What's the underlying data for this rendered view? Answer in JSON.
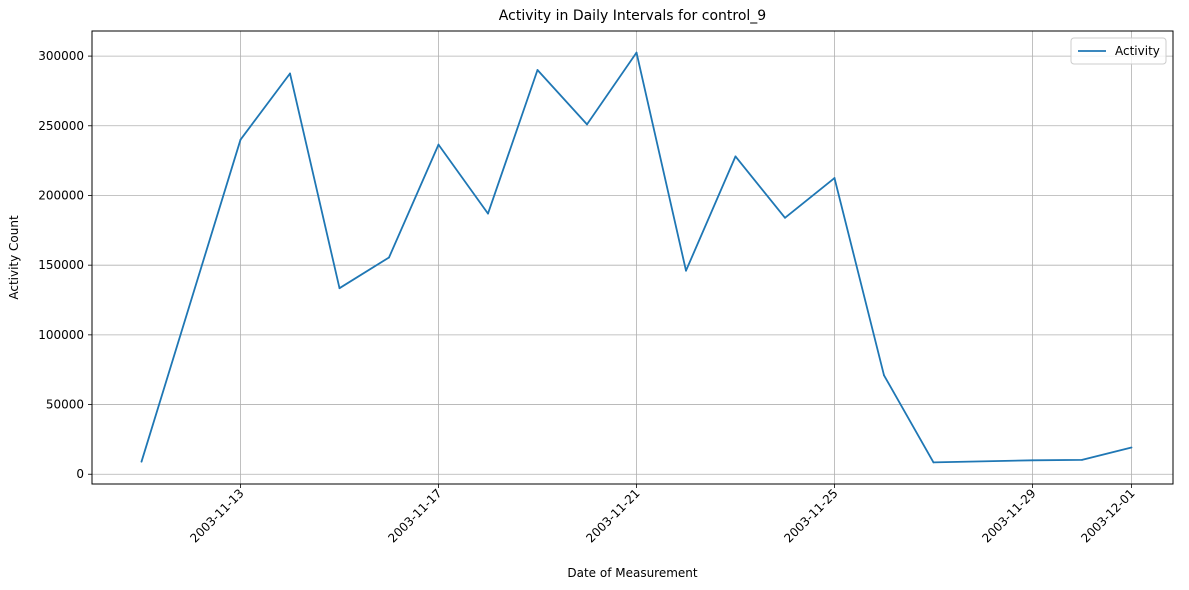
{
  "chart_data": {
    "type": "line",
    "title": "Activity in Daily Intervals for control_9",
    "xlabel": "Date of Measurement",
    "ylabel": "Activity Count",
    "x_type": "date",
    "x_tick_labels": [
      "2003-11-13",
      "2003-11-17",
      "2003-11-21",
      "2003-11-25",
      "2003-11-29",
      "2003-12-01"
    ],
    "y_tick_labels": [
      "0",
      "50000",
      "100000",
      "150000",
      "200000",
      "250000",
      "300000"
    ],
    "y_ticks": [
      0,
      50000,
      100000,
      150000,
      200000,
      250000,
      300000
    ],
    "xlim": [
      "2003-11-10",
      "2003-12-01"
    ],
    "ylim": [
      -7000,
      318000
    ],
    "grid": true,
    "legend_position": "upper right",
    "series": [
      {
        "name": "Activity",
        "color": "#1f77b4",
        "x": [
          "2003-11-11",
          "2003-11-13",
          "2003-11-14",
          "2003-11-15",
          "2003-11-16",
          "2003-11-17",
          "2003-11-18",
          "2003-11-19",
          "2003-11-20",
          "2003-11-21",
          "2003-11-22",
          "2003-11-23",
          "2003-11-24",
          "2003-11-25",
          "2003-11-26",
          "2003-11-27",
          "2003-11-29",
          "2003-11-30",
          "2003-12-01"
        ],
        "values": [
          9000,
          240000,
          287500,
          133500,
          155500,
          236500,
          187000,
          290000,
          251000,
          302500,
          146000,
          228000,
          184000,
          212500,
          71000,
          8500,
          10000,
          10300,
          19200
        ]
      }
    ]
  }
}
